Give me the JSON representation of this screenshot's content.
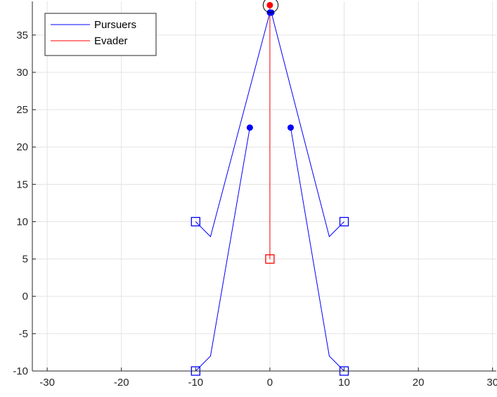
{
  "chart_data": {
    "type": "line",
    "title": "",
    "xlabel": "",
    "ylabel": "",
    "xlim": [
      -32,
      30.5
    ],
    "ylim": [
      -10,
      39.5
    ],
    "xticks": [
      -30,
      -20,
      -10,
      0,
      10,
      20,
      30
    ],
    "yticks": [
      -10,
      -5,
      0,
      5,
      10,
      15,
      20,
      25,
      30,
      35
    ],
    "grid": true,
    "legend_position": "top-left",
    "legend": [
      {
        "label": "Pursuers",
        "color": "#0000ff"
      },
      {
        "label": "Evader",
        "color": "#ff0000"
      }
    ],
    "series": [
      {
        "name": "Pursuers",
        "color": "#0000ff",
        "points": [
          [
            -10,
            10
          ],
          [
            -8,
            8
          ],
          [
            0,
            38
          ]
        ],
        "start": [
          -10,
          10
        ],
        "end": [
          0,
          38
        ]
      },
      {
        "name": "Pursuers",
        "color": "#0000ff",
        "points": [
          [
            10,
            10
          ],
          [
            8,
            8
          ],
          [
            0.2,
            38
          ]
        ],
        "start": [
          10,
          10
        ],
        "end": [
          0.2,
          38
        ]
      },
      {
        "name": "Pursuers",
        "color": "#0000ff",
        "points": [
          [
            -10,
            -10
          ],
          [
            -8,
            -8
          ],
          [
            -2.7,
            22.6
          ]
        ],
        "start": [
          -10,
          -10
        ],
        "end": [
          -2.7,
          22.6
        ]
      },
      {
        "name": "Pursuers",
        "color": "#0000ff",
        "points": [
          [
            10,
            -10
          ],
          [
            8,
            -8
          ],
          [
            2.8,
            22.6
          ]
        ],
        "start": [
          10,
          -10
        ],
        "end": [
          2.8,
          22.6
        ]
      },
      {
        "name": "Evader",
        "color": "#ff0000",
        "points": [
          [
            0,
            5
          ],
          [
            0,
            39
          ]
        ],
        "start": [
          0,
          5
        ],
        "end": [
          0,
          39
        ]
      }
    ],
    "capture_circle": {
      "center": [
        0.1,
        39
      ],
      "radius": 1.0
    }
  }
}
